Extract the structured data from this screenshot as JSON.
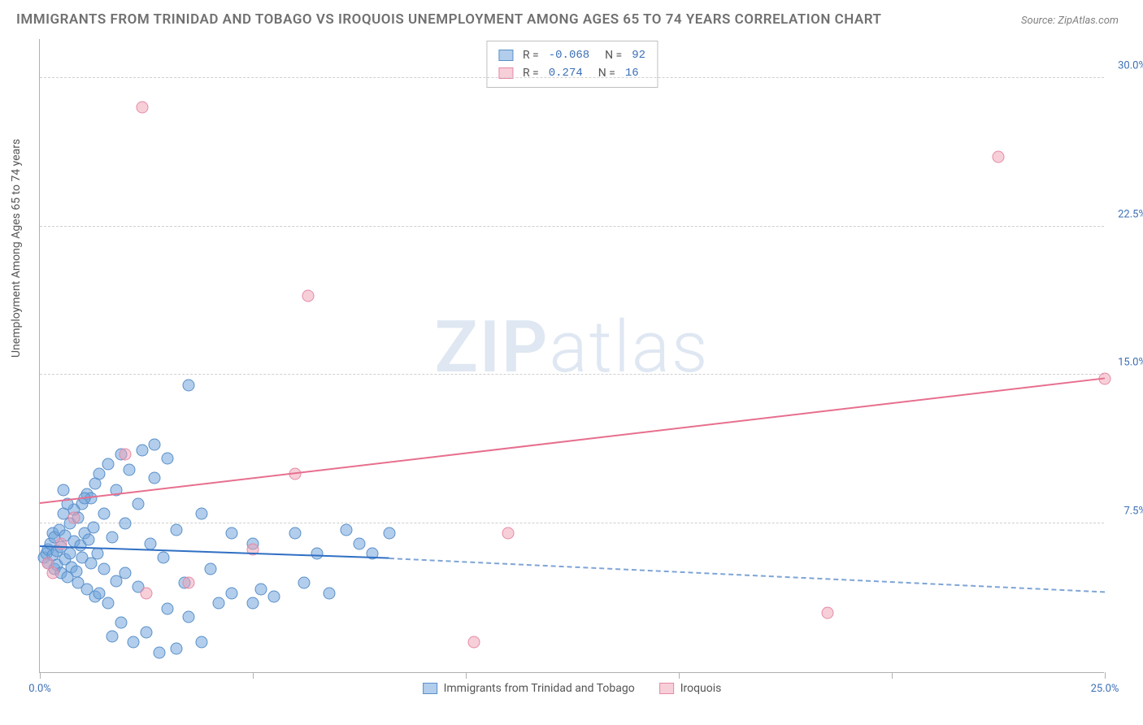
{
  "title": "IMMIGRANTS FROM TRINIDAD AND TOBAGO VS IROQUOIS UNEMPLOYMENT AMONG AGES 65 TO 74 YEARS CORRELATION CHART",
  "source": "Source: ZipAtlas.com",
  "watermark": "ZIPatlas",
  "ylabel": "Unemployment Among Ages 65 to 74 years",
  "chart": {
    "type": "scatter",
    "xlim": [
      0,
      25
    ],
    "ylim": [
      0,
      32
    ],
    "yticks": [
      7.5,
      15.0,
      22.5,
      30.0
    ],
    "ytick_labels": [
      "7.5%",
      "15.0%",
      "22.5%",
      "30.0%"
    ],
    "xticks": [
      0,
      5,
      10,
      15,
      20,
      25
    ],
    "xtick_labels": [
      "0.0%",
      "",
      "",
      "",
      "",
      "25.0%"
    ],
    "background_color": "#ffffff",
    "grid_color": "#d0d0d0",
    "series": {
      "blue": {
        "label": "Immigrants from Trinidad and Tobago",
        "color_fill": "rgba(115,165,220,0.55)",
        "color_stroke": "#5a8fc9",
        "R": "-0.068",
        "N": "92",
        "trend_start": [
          0,
          6.3
        ],
        "trend_solid_end": [
          8.2,
          5.7
        ],
        "trend_dash_end": [
          25,
          4.0
        ],
        "points": [
          [
            0.1,
            5.8
          ],
          [
            0.15,
            6.0
          ],
          [
            0.2,
            6.2
          ],
          [
            0.2,
            5.5
          ],
          [
            0.25,
            6.5
          ],
          [
            0.3,
            5.9
          ],
          [
            0.3,
            7.0
          ],
          [
            0.35,
            5.2
          ],
          [
            0.35,
            6.8
          ],
          [
            0.4,
            6.1
          ],
          [
            0.4,
            5.4
          ],
          [
            0.45,
            7.2
          ],
          [
            0.5,
            6.3
          ],
          [
            0.5,
            5.0
          ],
          [
            0.55,
            8.0
          ],
          [
            0.6,
            5.7
          ],
          [
            0.6,
            6.9
          ],
          [
            0.65,
            4.8
          ],
          [
            0.7,
            7.5
          ],
          [
            0.7,
            6.0
          ],
          [
            0.75,
            5.3
          ],
          [
            0.8,
            8.2
          ],
          [
            0.8,
            6.6
          ],
          [
            0.85,
            5.1
          ],
          [
            0.9,
            7.8
          ],
          [
            0.9,
            4.5
          ],
          [
            0.95,
            6.4
          ],
          [
            1.0,
            8.5
          ],
          [
            1.0,
            5.8
          ],
          [
            1.05,
            7.0
          ],
          [
            1.1,
            9.0
          ],
          [
            1.1,
            4.2
          ],
          [
            1.15,
            6.7
          ],
          [
            1.2,
            8.8
          ],
          [
            1.2,
            5.5
          ],
          [
            1.25,
            7.3
          ],
          [
            1.3,
            9.5
          ],
          [
            1.3,
            3.8
          ],
          [
            1.35,
            6.0
          ],
          [
            1.4,
            10.0
          ],
          [
            1.4,
            4.0
          ],
          [
            1.5,
            8.0
          ],
          [
            1.5,
            5.2
          ],
          [
            1.6,
            10.5
          ],
          [
            1.6,
            3.5
          ],
          [
            1.7,
            6.8
          ],
          [
            1.7,
            1.8
          ],
          [
            1.8,
            9.2
          ],
          [
            1.8,
            4.6
          ],
          [
            1.9,
            11.0
          ],
          [
            1.9,
            2.5
          ],
          [
            2.0,
            7.5
          ],
          [
            2.0,
            5.0
          ],
          [
            2.1,
            10.2
          ],
          [
            2.2,
            1.5
          ],
          [
            2.3,
            8.5
          ],
          [
            2.3,
            4.3
          ],
          [
            2.4,
            11.2
          ],
          [
            2.5,
            2.0
          ],
          [
            2.6,
            6.5
          ],
          [
            2.7,
            9.8
          ],
          [
            2.8,
            1.0
          ],
          [
            2.9,
            5.8
          ],
          [
            3.0,
            10.8
          ],
          [
            3.0,
            3.2
          ],
          [
            3.2,
            7.2
          ],
          [
            3.2,
            1.2
          ],
          [
            3.4,
            4.5
          ],
          [
            3.5,
            14.5
          ],
          [
            3.5,
            2.8
          ],
          [
            3.8,
            8.0
          ],
          [
            3.8,
            1.5
          ],
          [
            4.0,
            5.2
          ],
          [
            4.2,
            3.5
          ],
          [
            4.5,
            7.0
          ],
          [
            4.5,
            4.0
          ],
          [
            5.0,
            3.5
          ],
          [
            5.0,
            6.5
          ],
          [
            5.2,
            4.2
          ],
          [
            5.5,
            3.8
          ],
          [
            6.0,
            7.0
          ],
          [
            6.2,
            4.5
          ],
          [
            6.5,
            6.0
          ],
          [
            6.8,
            4.0
          ],
          [
            7.2,
            7.2
          ],
          [
            7.5,
            6.5
          ],
          [
            7.8,
            6.0
          ],
          [
            8.2,
            7.0
          ],
          [
            2.7,
            11.5
          ],
          [
            1.05,
            8.8
          ],
          [
            0.65,
            8.5
          ],
          [
            0.55,
            9.2
          ]
        ]
      },
      "pink": {
        "label": "Iroquois",
        "color_fill": "rgba(240,160,180,0.5)",
        "color_stroke": "#e58aa5",
        "R": "0.274",
        "N": "16",
        "trend_start": [
          0,
          8.5
        ],
        "trend_end": [
          25,
          14.8
        ],
        "points": [
          [
            0.2,
            5.5
          ],
          [
            0.3,
            5.0
          ],
          [
            0.5,
            6.5
          ],
          [
            0.8,
            7.8
          ],
          [
            2.0,
            11.0
          ],
          [
            2.4,
            28.5
          ],
          [
            2.5,
            4.0
          ],
          [
            3.5,
            4.5
          ],
          [
            5.0,
            6.2
          ],
          [
            6.0,
            10.0
          ],
          [
            6.3,
            19.0
          ],
          [
            10.2,
            1.5
          ],
          [
            11.0,
            7.0
          ],
          [
            18.5,
            3.0
          ],
          [
            22.5,
            26.0
          ],
          [
            25.0,
            14.8
          ]
        ]
      }
    }
  },
  "legend_stats": [
    {
      "swatch": "blue",
      "R": "-0.068",
      "N": "92"
    },
    {
      "swatch": "pink",
      "R": "0.274",
      "N": "16"
    }
  ]
}
